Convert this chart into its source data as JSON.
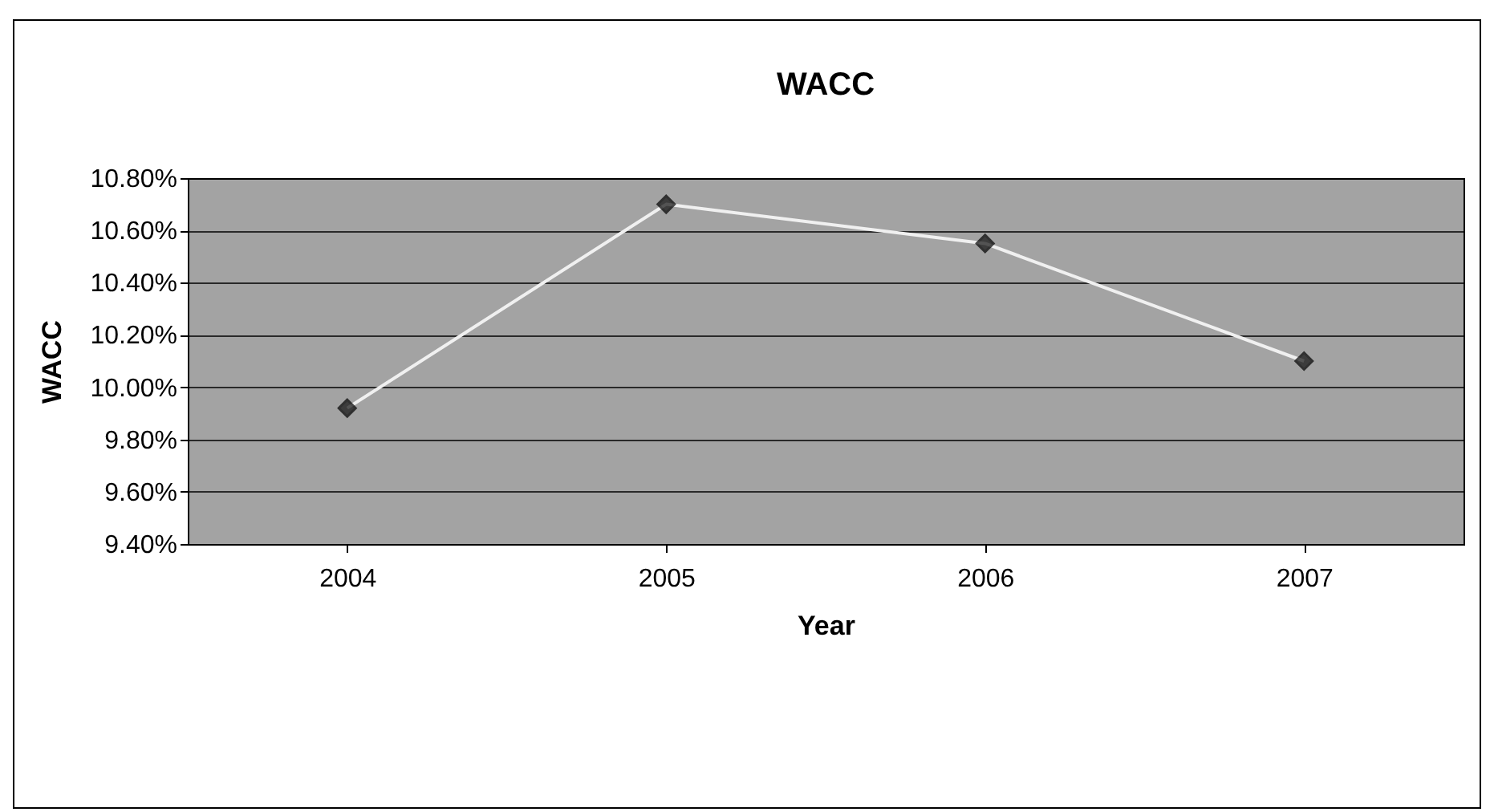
{
  "chart_data": {
    "type": "line",
    "title": "WACC",
    "xlabel": "Year",
    "ylabel": "WACC",
    "categories": [
      "2004",
      "2005",
      "2006",
      "2007"
    ],
    "series": [
      {
        "color": "#f0f0f0",
        "values": [
          9.92,
          10.7,
          10.55,
          10.1
        ]
      }
    ],
    "ylim": [
      9.4,
      10.8
    ],
    "yticks": [
      {
        "value": 9.4,
        "label": "9.40%"
      },
      {
        "value": 9.6,
        "label": "9.60%"
      },
      {
        "value": 9.8,
        "label": "9.80%"
      },
      {
        "value": 10.0,
        "label": "10.00%"
      },
      {
        "value": 10.2,
        "label": "10.20%"
      },
      {
        "value": 10.4,
        "label": "10.40%"
      },
      {
        "value": 10.6,
        "label": "10.60%"
      },
      {
        "value": 10.8,
        "label": "10.80%"
      }
    ],
    "grid": "y",
    "marker": "diamond",
    "line_style": "solid"
  }
}
